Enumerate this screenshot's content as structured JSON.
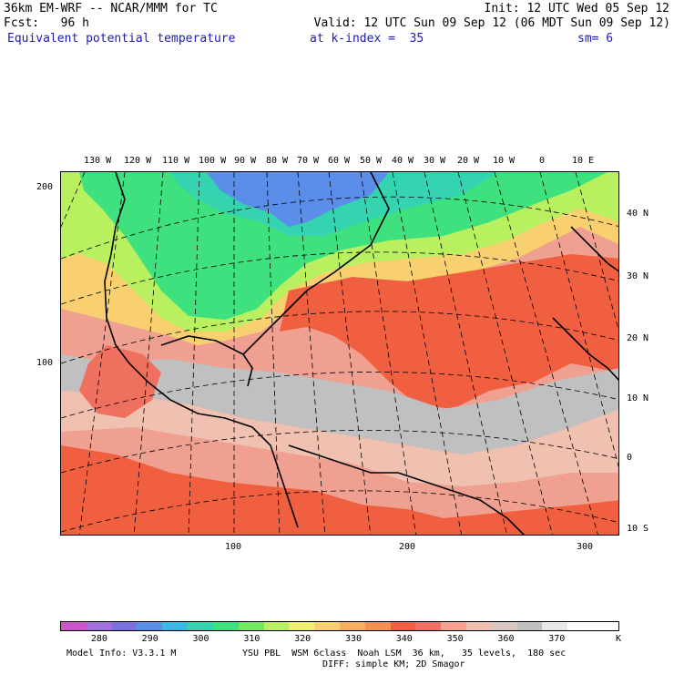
{
  "header": {
    "model_title": "36km EM-WRF -- NCAR/MMM for TC",
    "init": "Init: 12 UTC Wed 05 Sep 12",
    "fcst": "Fcst:   96 h",
    "valid": "Valid: 12 UTC Sun 09 Sep 12 (06 MDT Sun 09 Sep 12)",
    "field": "Equivalent potential temperature",
    "kindex": "at k-index =  35",
    "smooth": "sm= 6"
  },
  "map": {
    "top_lon_labels": [
      "130 W",
      "120 W",
      "110 W",
      "100 W",
      "90 W",
      "80 W",
      "70 W",
      "60 W",
      "50 W",
      "40 W",
      "30 W",
      "20 W",
      "10 W",
      "0",
      "10 E"
    ],
    "right_lat_labels": [
      "40 N",
      "30 N",
      "20 N",
      "10 N",
      "0",
      "10 S"
    ],
    "left_grid_labels": [
      "200",
      "100"
    ],
    "bottom_grid_labels": [
      "100",
      "200",
      "300"
    ]
  },
  "legend": {
    "colors": [
      "#cc55cc",
      "#a070dd",
      "#7c70e0",
      "#5a8ee8",
      "#3cb8e6",
      "#34d4b0",
      "#3fe07e",
      "#70e860",
      "#b8f060",
      "#f0f070",
      "#f8d070",
      "#f8b060",
      "#f89050",
      "#f06040",
      "#f07060",
      "#f8a090",
      "#f0c0b0",
      "#d8c8c0",
      "#c0c0c0",
      "#e8e8e8",
      "#ffffff",
      "#ffffff"
    ],
    "labels": [
      "280",
      "290",
      "300",
      "310",
      "320",
      "330",
      "340",
      "350",
      "360",
      "370"
    ],
    "unit": "K"
  },
  "footer": {
    "model_info": "Model Info: V3.3.1 M",
    "physics": "YSU PBL  WSM 6class  Noah LSM  36 km,   35 levels,  180 sec",
    "diffusion": "DIFF: simple KM; 2D Smagor"
  }
}
